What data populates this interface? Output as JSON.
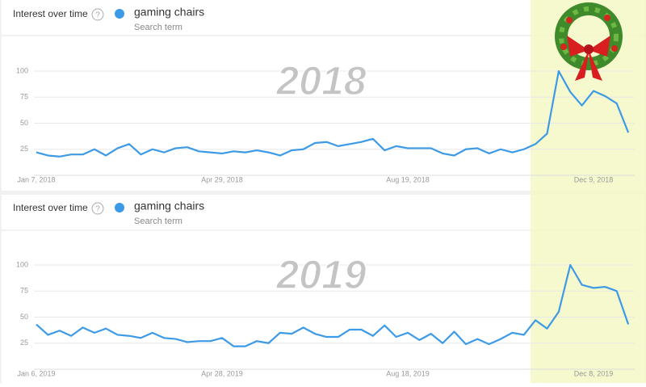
{
  "chart_data": [
    {
      "type": "line",
      "title": "Interest over time",
      "subtitle": "Search term",
      "annotation": "2018",
      "categories": [
        "Jan 7, 2018",
        null,
        null,
        null,
        null,
        null,
        null,
        null,
        null,
        null,
        null,
        null,
        null,
        null,
        null,
        null,
        "Apr 29, 2018",
        null,
        null,
        null,
        null,
        null,
        null,
        null,
        null,
        null,
        null,
        null,
        null,
        null,
        null,
        null,
        "Aug 19, 2018",
        null,
        null,
        null,
        null,
        null,
        null,
        null,
        null,
        null,
        null,
        null,
        null,
        null,
        null,
        null,
        "Dec 9, 2018",
        null,
        null,
        null
      ],
      "series": [
        {
          "name": "gaming chairs",
          "color": "#3d9ae6",
          "values": [
            22,
            19,
            18,
            20,
            20,
            25,
            19,
            26,
            30,
            20,
            25,
            22,
            26,
            27,
            23,
            22,
            21,
            23,
            22,
            24,
            22,
            19,
            24,
            25,
            31,
            32,
            28,
            30,
            32,
            35,
            24,
            28,
            26,
            26,
            26,
            21,
            19,
            25,
            26,
            21,
            25,
            22,
            25,
            30,
            40,
            100,
            80,
            67,
            81,
            76,
            69,
            41
          ]
        }
      ],
      "ylim": [
        0,
        100
      ],
      "yticks": [
        25,
        50,
        75,
        100
      ],
      "grid": true
    },
    {
      "type": "line",
      "title": "Interest over time",
      "subtitle": "Search term",
      "annotation": "2019",
      "categories": [
        "Jan 6, 2019",
        null,
        null,
        null,
        null,
        null,
        null,
        null,
        null,
        null,
        null,
        null,
        null,
        null,
        null,
        null,
        "Apr 28, 2019",
        null,
        null,
        null,
        null,
        null,
        null,
        null,
        null,
        null,
        null,
        null,
        null,
        null,
        null,
        null,
        "Aug 18, 2019",
        null,
        null,
        null,
        null,
        null,
        null,
        null,
        null,
        null,
        null,
        null,
        null,
        null,
        null,
        null,
        "Dec 8, 2019",
        null,
        null,
        null
      ],
      "series": [
        {
          "name": "gaming chairs",
          "color": "#3d9ae6",
          "values": [
            43,
            33,
            37,
            32,
            40,
            35,
            39,
            33,
            32,
            30,
            35,
            30,
            29,
            26,
            27,
            27,
            30,
            22,
            22,
            27,
            25,
            35,
            34,
            40,
            34,
            31,
            31,
            38,
            38,
            32,
            42,
            31,
            35,
            28,
            34,
            25,
            36,
            24,
            29,
            24,
            29,
            35,
            33,
            47,
            39,
            55,
            100,
            81,
            78,
            79,
            75,
            43
          ]
        }
      ],
      "ylim": [
        0,
        100
      ],
      "yticks": [
        25,
        50,
        75,
        100
      ],
      "grid": true
    }
  ]
}
